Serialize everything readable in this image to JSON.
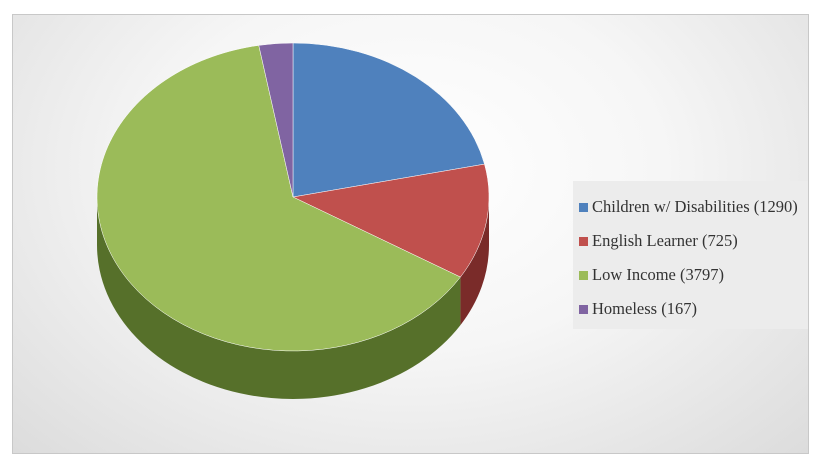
{
  "chart_data": {
    "type": "pie",
    "style": "3d",
    "categories": [
      "Children w/ Disabilities",
      "English Learner",
      "Low Income",
      "Homeless"
    ],
    "values": [
      1290,
      725,
      3797,
      167
    ],
    "colors": [
      "#4f81bd",
      "#c0504d",
      "#9bbb59",
      "#8064a2"
    ],
    "side_colors": [
      "#2f5383",
      "#7a2b29",
      "#56702a",
      "#4b3768"
    ],
    "legend_placement": "right",
    "legend": [
      "Children w/ Disabilities (1290)",
      "English Learner (725)",
      "Low Income (3797)",
      "Homeless (167)"
    ]
  }
}
